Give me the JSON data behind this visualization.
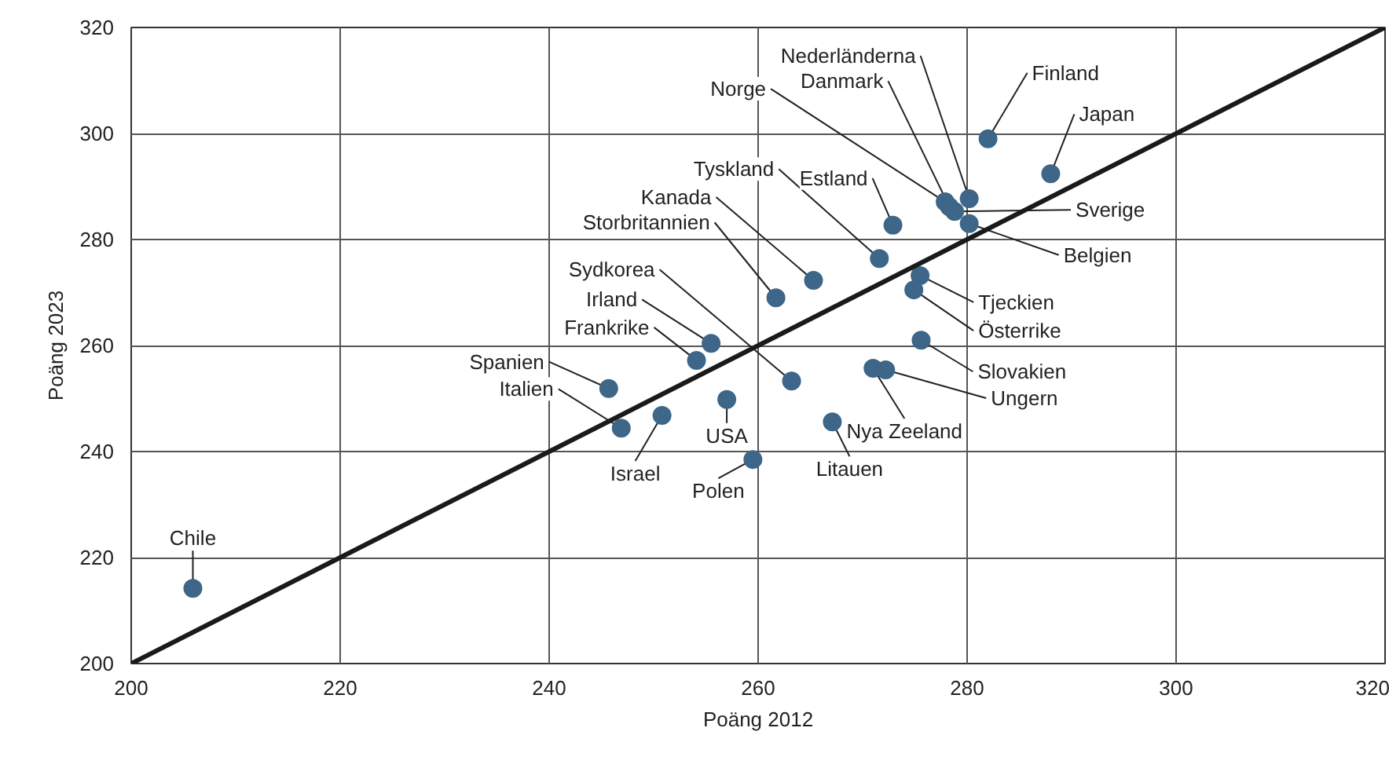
{
  "chart_data": {
    "type": "scatter",
    "xlabel": "Poäng 2012",
    "ylabel": "Poäng 2023",
    "xlim": [
      200,
      320
    ],
    "ylim": [
      200,
      320
    ],
    "xticks": [
      200,
      220,
      240,
      260,
      280,
      300,
      320
    ],
    "yticks": [
      200,
      220,
      240,
      260,
      280,
      300,
      320
    ],
    "grid": true,
    "series": [
      {
        "color": "#3d6688",
        "marker": "circle",
        "x": [
          205.9,
          246.9,
          245.7,
          250.8,
          257.0,
          259.5,
          254.1,
          255.5,
          263.2,
          261.7,
          265.3,
          271.6,
          272.9,
          277.9,
          278.3,
          280.2,
          282.0,
          288.0,
          278.8,
          280.2,
          275.5,
          274.9,
          275.6,
          272.2,
          271.0,
          267.1
        ],
        "values": [
          214.2,
          244.4,
          251.9,
          246.8,
          249.8,
          238.5,
          257.2,
          260.4,
          253.3,
          269.0,
          272.3,
          276.4,
          282.7,
          287.1,
          286.2,
          287.7,
          299.0,
          292.4,
          285.3,
          283.0,
          273.2,
          270.5,
          261.0,
          255.4,
          255.7,
          245.6
        ],
        "value_labels": [
          "Chile",
          "Italien",
          "Spanien",
          "Israel",
          "USA",
          "Polen",
          "Frankrike",
          "Irland",
          "Sydkorea",
          "Storbritannien",
          "Kanada",
          "Tyskland",
          "Estland",
          "Norge",
          "Danmark",
          "Nederländerna",
          "Finland",
          "Japan",
          "Sverige",
          "Belgien",
          "Tjeckien",
          "Österrike",
          "Slovakien",
          "Ungern",
          "Nya Zeeland",
          "Litauen"
        ]
      },
      {
        "type": "line",
        "color": "#1a1a1a",
        "x": [
          200,
          320
        ],
        "values": [
          200,
          320
        ]
      }
    ]
  }
}
